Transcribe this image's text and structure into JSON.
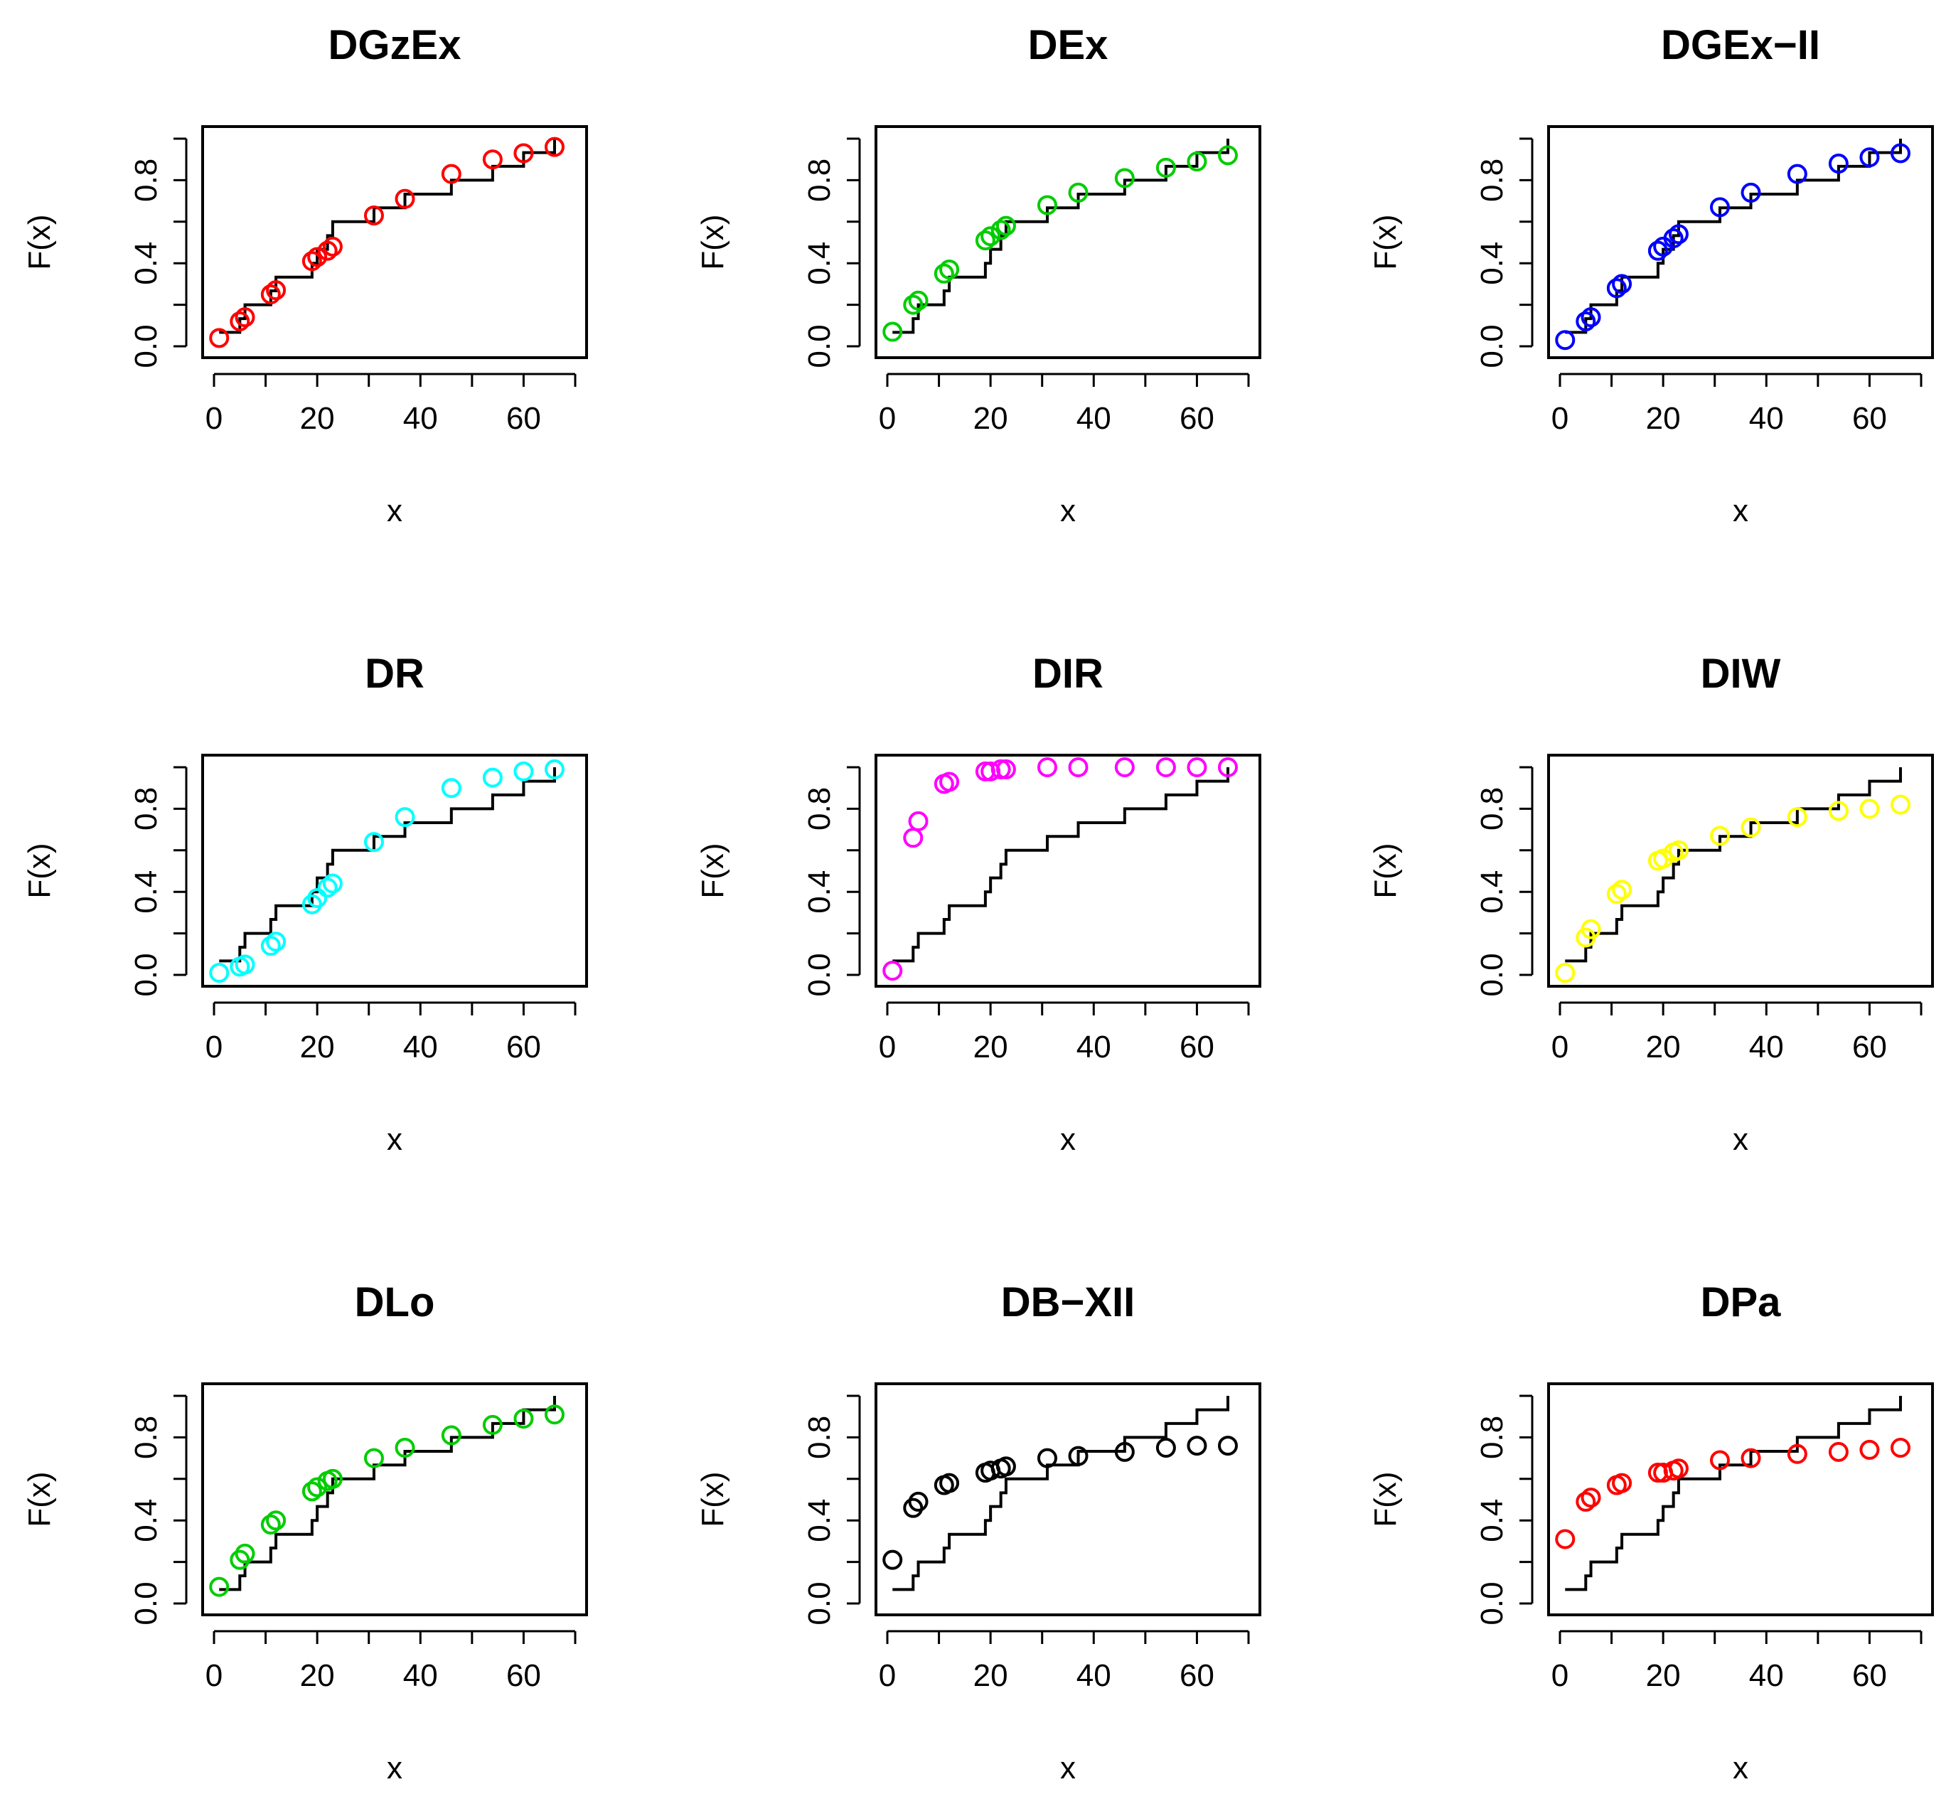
{
  "figure": {
    "empirical_x": [
      1,
      5,
      6,
      11,
      12,
      19,
      20,
      22,
      23,
      31,
      37,
      46,
      54,
      60,
      66
    ],
    "empirical_step_y": [
      0.067,
      0.133,
      0.2,
      0.267,
      0.333,
      0.4,
      0.467,
      0.533,
      0.6,
      0.667,
      0.733,
      0.8,
      0.867,
      0.933,
      1.0
    ]
  },
  "chart_data": [
    {
      "type": "scatter",
      "title": "DGzEx",
      "xlabel": "x",
      "ylabel": "F(x)",
      "xlim": [
        0,
        70
      ],
      "ylim": [
        0,
        1
      ],
      "x_ticks": [
        "0",
        "20",
        "40",
        "60"
      ],
      "y_ticks": [
        "0.0",
        "0.4",
        "0.8"
      ],
      "color": "#ff0000",
      "series": [
        {
          "name": "fitted",
          "x": [
            1,
            5,
            6,
            11,
            12,
            19,
            20,
            22,
            23,
            31,
            37,
            46,
            54,
            60,
            66
          ],
          "values": [
            0.04,
            0.12,
            0.14,
            0.25,
            0.27,
            0.41,
            0.43,
            0.46,
            0.48,
            0.63,
            0.71,
            0.83,
            0.9,
            0.93,
            0.96
          ]
        },
        {
          "name": "empirical",
          "type": "step"
        }
      ]
    },
    {
      "type": "scatter",
      "title": "DEx",
      "xlabel": "x",
      "ylabel": "F(x)",
      "xlim": [
        0,
        70
      ],
      "ylim": [
        0,
        1
      ],
      "x_ticks": [
        "0",
        "20",
        "40",
        "60"
      ],
      "y_ticks": [
        "0.0",
        "0.4",
        "0.8"
      ],
      "color": "#00cd00",
      "series": [
        {
          "name": "fitted",
          "x": [
            1,
            5,
            6,
            11,
            12,
            19,
            20,
            22,
            23,
            31,
            37,
            46,
            54,
            60,
            66
          ],
          "values": [
            0.07,
            0.2,
            0.22,
            0.35,
            0.37,
            0.51,
            0.53,
            0.56,
            0.58,
            0.68,
            0.74,
            0.81,
            0.86,
            0.89,
            0.92
          ]
        },
        {
          "name": "empirical",
          "type": "step"
        }
      ]
    },
    {
      "type": "scatter",
      "title": "DGEx−II",
      "xlabel": "x",
      "ylabel": "F(x)",
      "xlim": [
        0,
        70
      ],
      "ylim": [
        0,
        1
      ],
      "x_ticks": [
        "0",
        "20",
        "40",
        "60"
      ],
      "y_ticks": [
        "0.0",
        "0.4",
        "0.8"
      ],
      "color": "#0000ff",
      "series": [
        {
          "name": "fitted",
          "x": [
            1,
            5,
            6,
            11,
            12,
            19,
            20,
            22,
            23,
            31,
            37,
            46,
            54,
            60,
            66
          ],
          "values": [
            0.03,
            0.12,
            0.14,
            0.28,
            0.3,
            0.46,
            0.48,
            0.52,
            0.54,
            0.67,
            0.74,
            0.83,
            0.88,
            0.91,
            0.93
          ]
        },
        {
          "name": "empirical",
          "type": "step"
        }
      ]
    },
    {
      "type": "scatter",
      "title": "DR",
      "xlabel": "x",
      "ylabel": "F(x)",
      "xlim": [
        0,
        70
      ],
      "ylim": [
        0,
        1
      ],
      "x_ticks": [
        "0",
        "20",
        "40",
        "60"
      ],
      "y_ticks": [
        "0.0",
        "0.4",
        "0.8"
      ],
      "color": "#00ffff",
      "series": [
        {
          "name": "fitted",
          "x": [
            1,
            5,
            6,
            11,
            12,
            19,
            20,
            22,
            23,
            31,
            37,
            46,
            54,
            60,
            66
          ],
          "values": [
            0.01,
            0.04,
            0.05,
            0.14,
            0.16,
            0.34,
            0.37,
            0.42,
            0.44,
            0.64,
            0.76,
            0.9,
            0.95,
            0.98,
            0.99
          ]
        },
        {
          "name": "empirical",
          "type": "step"
        }
      ]
    },
    {
      "type": "scatter",
      "title": "DIR",
      "xlabel": "x",
      "ylabel": "F(x)",
      "xlim": [
        0,
        70
      ],
      "ylim": [
        0,
        1
      ],
      "x_ticks": [
        "0",
        "20",
        "40",
        "60"
      ],
      "y_ticks": [
        "0.0",
        "0.4",
        "0.8"
      ],
      "color": "#ff00ff",
      "series": [
        {
          "name": "fitted",
          "x": [
            1,
            5,
            6,
            11,
            12,
            19,
            20,
            22,
            23,
            31,
            37,
            46,
            54,
            60,
            66
          ],
          "values": [
            0.02,
            0.66,
            0.74,
            0.92,
            0.93,
            0.98,
            0.98,
            0.99,
            0.99,
            1.0,
            1.0,
            1.0,
            1.0,
            1.0,
            1.0
          ]
        },
        {
          "name": "empirical",
          "type": "step"
        }
      ]
    },
    {
      "type": "scatter",
      "title": "DIW",
      "xlabel": "x",
      "ylabel": "F(x)",
      "xlim": [
        0,
        70
      ],
      "ylim": [
        0,
        1
      ],
      "x_ticks": [
        "0",
        "20",
        "40",
        "60"
      ],
      "y_ticks": [
        "0.0",
        "0.4",
        "0.8"
      ],
      "color": "#ffff00",
      "series": [
        {
          "name": "fitted",
          "x": [
            1,
            5,
            6,
            11,
            12,
            19,
            20,
            22,
            23,
            31,
            37,
            46,
            54,
            60,
            66
          ],
          "values": [
            0.01,
            0.18,
            0.22,
            0.39,
            0.41,
            0.55,
            0.56,
            0.59,
            0.6,
            0.67,
            0.71,
            0.76,
            0.79,
            0.8,
            0.82
          ]
        },
        {
          "name": "empirical",
          "type": "step"
        }
      ]
    },
    {
      "type": "scatter",
      "title": "DLo",
      "xlabel": "x",
      "ylabel": "F(x)",
      "xlim": [
        0,
        70
      ],
      "ylim": [
        0,
        1
      ],
      "x_ticks": [
        "0",
        "20",
        "40",
        "60"
      ],
      "y_ticks": [
        "0.0",
        "0.4",
        "0.8"
      ],
      "color": "#00cd00",
      "series": [
        {
          "name": "fitted",
          "x": [
            1,
            5,
            6,
            11,
            12,
            19,
            20,
            22,
            23,
            31,
            37,
            46,
            54,
            60,
            66
          ],
          "values": [
            0.08,
            0.21,
            0.24,
            0.38,
            0.4,
            0.54,
            0.56,
            0.59,
            0.6,
            0.7,
            0.75,
            0.81,
            0.86,
            0.89,
            0.91
          ]
        },
        {
          "name": "empirical",
          "type": "step"
        }
      ]
    },
    {
      "type": "scatter",
      "title": "DB−XII",
      "xlabel": "x",
      "ylabel": "F(x)",
      "xlim": [
        0,
        70
      ],
      "ylim": [
        0,
        1
      ],
      "x_ticks": [
        "0",
        "20",
        "40",
        "60"
      ],
      "y_ticks": [
        "0.0",
        "0.4",
        "0.8"
      ],
      "color": "#000000",
      "series": [
        {
          "name": "fitted",
          "x": [
            1,
            5,
            6,
            11,
            12,
            19,
            20,
            22,
            23,
            31,
            37,
            46,
            54,
            60,
            66
          ],
          "values": [
            0.21,
            0.46,
            0.49,
            0.57,
            0.58,
            0.63,
            0.64,
            0.65,
            0.66,
            0.7,
            0.71,
            0.73,
            0.75,
            0.76,
            0.76
          ]
        },
        {
          "name": "empirical",
          "type": "step"
        }
      ]
    },
    {
      "type": "scatter",
      "title": "DPa",
      "xlabel": "x",
      "ylabel": "F(x)",
      "xlim": [
        0,
        70
      ],
      "ylim": [
        0,
        1
      ],
      "x_ticks": [
        "0",
        "20",
        "40",
        "60"
      ],
      "y_ticks": [
        "0.0",
        "0.4",
        "0.8"
      ],
      "color": "#ff0000",
      "series": [
        {
          "name": "fitted",
          "x": [
            1,
            5,
            6,
            11,
            12,
            19,
            20,
            22,
            23,
            31,
            37,
            46,
            54,
            60,
            66
          ],
          "values": [
            0.31,
            0.49,
            0.51,
            0.57,
            0.58,
            0.63,
            0.63,
            0.64,
            0.65,
            0.69,
            0.7,
            0.72,
            0.73,
            0.74,
            0.75
          ]
        },
        {
          "name": "empirical",
          "type": "step"
        }
      ]
    }
  ]
}
